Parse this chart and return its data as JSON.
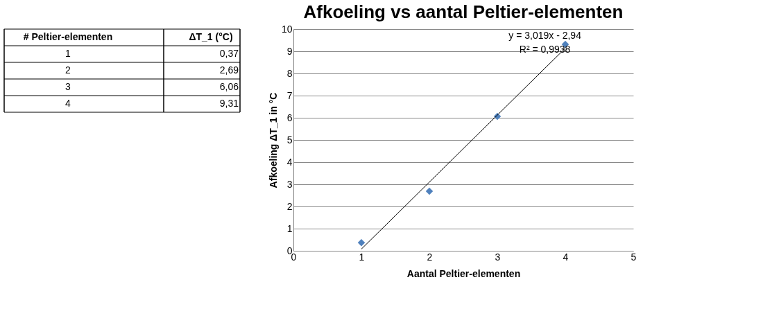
{
  "chart_data": {
    "type": "scatter",
    "title": "Afkoeling vs aantal Peltier-elementen",
    "xlabel": "Aantal Peltier-elementen",
    "ylabel": "Afkoeling ΔT_1 in °C",
    "x": [
      1,
      2,
      3,
      4
    ],
    "series": [
      {
        "color": "#4f81bd",
        "values": [
          0.37,
          2.69,
          6.06,
          9.31
        ]
      },
      {
        "type": "line",
        "color": "#000000",
        "marker": "none",
        "x": [
          1,
          4
        ],
        "values": [
          0.08,
          9.14
        ]
      }
    ],
    "xlim": [
      0,
      5
    ],
    "ylim": [
      0,
      10
    ],
    "xticks": [
      0,
      1,
      2,
      3,
      4,
      5
    ],
    "yticks": [
      0,
      1,
      2,
      3,
      4,
      5,
      6,
      7,
      8,
      9,
      10
    ],
    "grid": "y",
    "marker": "diamond",
    "line_style": "solid",
    "annotations": [
      "y = 3,019x - 2,94",
      "R² = 0,9938",
      "# Peltier-elementen",
      "ΔT_1 (°C)",
      "1",
      "2",
      "3",
      "4",
      "0,37",
      "2,69",
      "6,06",
      "9,31"
    ]
  }
}
